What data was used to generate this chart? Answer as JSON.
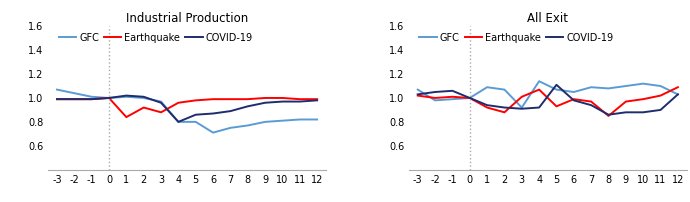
{
  "x": [
    -3,
    -2,
    -1,
    0,
    1,
    2,
    3,
    4,
    5,
    6,
    7,
    8,
    9,
    10,
    11,
    12
  ],
  "panel1_title": "Industrial Production",
  "panel2_title": "All Exit",
  "panel1": {
    "GFC": [
      1.07,
      1.04,
      1.01,
      1.0,
      1.01,
      1.0,
      0.97,
      0.8,
      0.8,
      0.71,
      0.75,
      0.77,
      0.8,
      0.81,
      0.82,
      0.82
    ],
    "Earthquake": [
      0.99,
      0.99,
      0.99,
      1.0,
      0.84,
      0.92,
      0.88,
      0.96,
      0.98,
      0.99,
      0.99,
      0.99,
      1.0,
      1.0,
      0.99,
      0.99
    ],
    "COVID-19": [
      0.99,
      0.99,
      0.99,
      1.0,
      1.02,
      1.01,
      0.96,
      0.8,
      0.86,
      0.87,
      0.89,
      0.93,
      0.96,
      0.97,
      0.97,
      0.98
    ]
  },
  "panel2": {
    "GFC": [
      1.07,
      0.98,
      0.99,
      1.0,
      1.09,
      1.07,
      0.92,
      1.14,
      1.07,
      1.05,
      1.09,
      1.08,
      1.1,
      1.12,
      1.1,
      1.03
    ],
    "Earthquake": [
      1.02,
      1.0,
      1.01,
      1.0,
      0.92,
      0.88,
      1.01,
      1.07,
      0.93,
      0.99,
      0.97,
      0.85,
      0.97,
      0.99,
      1.02,
      1.09
    ],
    "COVID-19": [
      1.03,
      1.05,
      1.06,
      1.0,
      0.94,
      0.92,
      0.91,
      0.92,
      1.11,
      0.98,
      0.94,
      0.86,
      0.88,
      0.88,
      0.9,
      1.03
    ]
  },
  "colors": {
    "GFC": "#5B9BD5",
    "Earthquake": "#FF0000",
    "COVID-19": "#1F2D6E"
  },
  "ylim": [
    0.4,
    1.6
  ],
  "yticks": [
    0.6,
    0.8,
    1.0,
    1.2,
    1.4,
    1.6
  ],
  "ytick_labels": [
    "0.6",
    "0.8",
    "1.0",
    "1.2",
    "1.4",
    "1.6"
  ],
  "legend_order": [
    "GFC",
    "Earthquake",
    "COVID-19"
  ],
  "linewidth": 1.4,
  "title_fontsize": 8.5,
  "tick_fontsize": 7
}
